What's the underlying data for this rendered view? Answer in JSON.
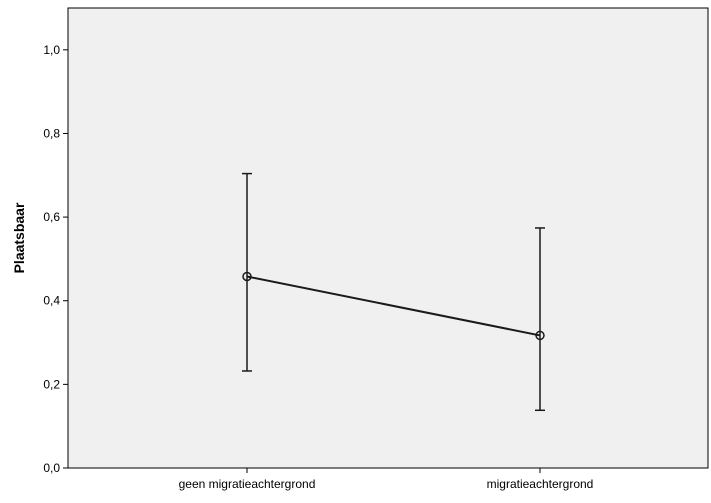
{
  "chart_data": {
    "type": "line",
    "title": "",
    "xlabel": "",
    "ylabel": "Plaatsbaar",
    "categories": [
      "geen migratieachtergrond",
      "migratieachtergrond"
    ],
    "series": [
      {
        "values": [
          0.458,
          0.317
        ],
        "error_low": [
          0.232,
          0.138
        ],
        "error_high": [
          0.704,
          0.574
        ]
      }
    ],
    "ylim": [
      0.0,
      1.1
    ],
    "yticks": [
      0.0,
      0.2,
      0.4,
      0.6,
      0.8,
      1.0
    ],
    "ytick_labels": [
      "0,0",
      "0,2",
      "0,4",
      "0,6",
      "0,8",
      "1,0"
    ],
    "grid": false,
    "legend": "none",
    "colors": {
      "plot_background": "#f0f0f0",
      "line": "#1a1a1a",
      "axis": "#000000"
    }
  }
}
